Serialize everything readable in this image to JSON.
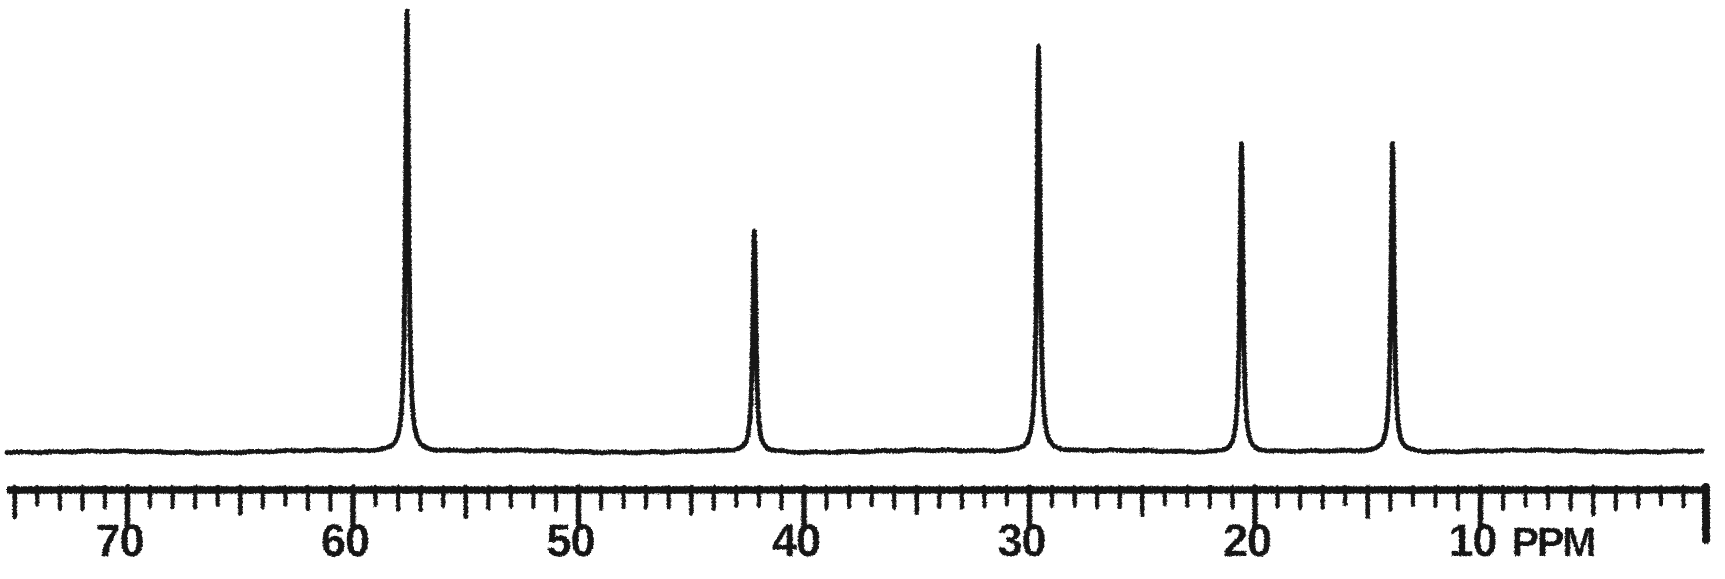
{
  "chart_data": {
    "type": "line",
    "kind": "13C NMR spectrum (scanned)",
    "title": "",
    "x_axis": {
      "unit_label": "PPM",
      "tick_labels": [
        70,
        60,
        50,
        40,
        30,
        20,
        10
      ],
      "range_ppm": [
        75,
        0
      ],
      "direction": "ppm decreasing left to right",
      "minor_tick_interval_ppm": 1,
      "medium_tick_interval_ppm": 5,
      "labeled_tick_interval_ppm": 10,
      "axis_style": "ruler with ticks hanging below line"
    },
    "y_axis": {
      "visible": false,
      "note": "intensity, unlabeled"
    },
    "series": [
      {
        "name": "spectrum-trace",
        "baseline": "flat noisy baseline across full width",
        "peaks": [
          {
            "ppm": 57.6,
            "relative_intensity": 1.0
          },
          {
            "ppm": 42.2,
            "relative_intensity": 0.5
          },
          {
            "ppm": 29.6,
            "relative_intensity": 0.92
          },
          {
            "ppm": 20.6,
            "relative_intensity": 0.7
          },
          {
            "ppm": 13.9,
            "relative_intensity": 0.7
          }
        ]
      }
    ],
    "legend": {
      "visible": false
    },
    "grid": false,
    "colors": {
      "ink": "#131313",
      "background": "#ffffff"
    }
  }
}
